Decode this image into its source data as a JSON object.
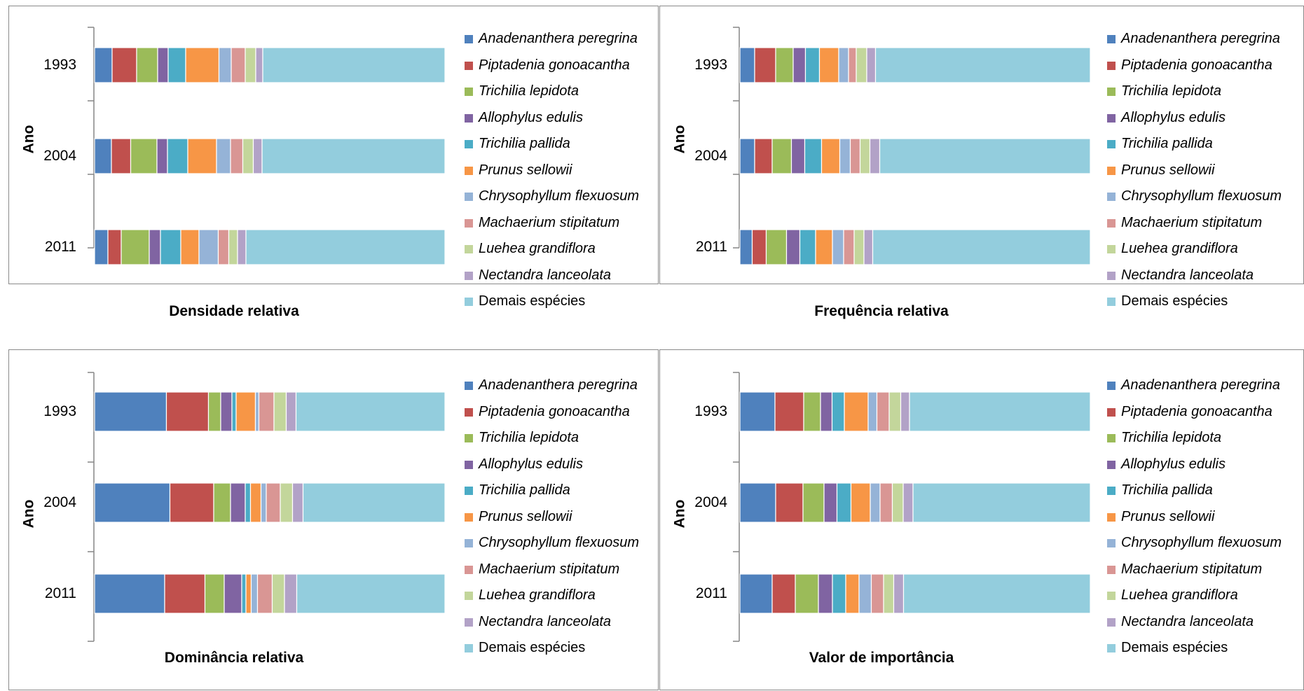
{
  "colors": [
    "#4f81bd",
    "#c0504d",
    "#9bbb59",
    "#8064a2",
    "#4bacc6",
    "#f79646",
    "#95b3d7",
    "#d99694",
    "#c3d69b",
    "#b2a2c7",
    "#93cddd"
  ],
  "legend_species": [
    "Anadenanthera peregrina",
    "Piptadenia gonoacantha",
    "Trichilia lepidota",
    "Allophylus edulis",
    "Trichilia pallida",
    "Prunus sellowii",
    "Chrysophyllum flexuosum",
    "Machaerium stipitatum",
    "Luehea grandiflora",
    "Nectandra lanceolata",
    "Demais espécies"
  ],
  "chart_data": [
    {
      "type": "bar",
      "stacked": true,
      "orientation": "horizontal",
      "title": "Densidade relativa",
      "ylabel": "Ano",
      "categories": [
        "1993",
        "2004",
        "2011"
      ],
      "xlim": [
        0,
        100
      ],
      "series": [
        {
          "name": "Anadenanthera peregrina",
          "values": [
            5.0,
            4.8,
            3.8
          ]
        },
        {
          "name": "Piptadenia gonoacantha",
          "values": [
            7.0,
            5.5,
            3.8
          ]
        },
        {
          "name": "Trichilia lepidota",
          "values": [
            6.0,
            7.5,
            8.0
          ]
        },
        {
          "name": "Allophylus edulis",
          "values": [
            3.0,
            3.0,
            3.2
          ]
        },
        {
          "name": "Trichilia pallida",
          "values": [
            5.0,
            5.8,
            5.8
          ]
        },
        {
          "name": "Prunus sellowii",
          "values": [
            9.5,
            8.2,
            5.2
          ]
        },
        {
          "name": "Chrysophyllum flexuosum",
          "values": [
            3.5,
            4.0,
            5.5
          ]
        },
        {
          "name": "Machaerium stipitatum",
          "values": [
            4.0,
            3.5,
            3.0
          ]
        },
        {
          "name": "Luehea grandiflora",
          "values": [
            3.0,
            3.0,
            2.5
          ]
        },
        {
          "name": "Nectandra lanceolata",
          "values": [
            2.0,
            2.5,
            2.4
          ]
        },
        {
          "name": "Demais espécies",
          "values": [
            52.0,
            52.2,
            56.8
          ]
        }
      ]
    },
    {
      "type": "bar",
      "stacked": true,
      "orientation": "horizontal",
      "title": "Frequência relativa",
      "ylabel": "Ano",
      "categories": [
        "1993",
        "2004",
        "2011"
      ],
      "xlim": [
        0,
        100
      ],
      "series": [
        {
          "name": "Anadenanthera peregrina",
          "values": [
            4.2,
            4.2,
            3.5
          ]
        },
        {
          "name": "Piptadenia gonoacantha",
          "values": [
            6.0,
            5.0,
            4.0
          ]
        },
        {
          "name": "Trichilia lepidota",
          "values": [
            5.0,
            5.5,
            5.8
          ]
        },
        {
          "name": "Allophylus edulis",
          "values": [
            3.5,
            3.8,
            3.8
          ]
        },
        {
          "name": "Trichilia pallida",
          "values": [
            4.0,
            4.8,
            4.5
          ]
        },
        {
          "name": "Prunus sellowii",
          "values": [
            5.5,
            5.2,
            4.8
          ]
        },
        {
          "name": "Chrysophyllum flexuosum",
          "values": [
            2.8,
            3.0,
            3.2
          ]
        },
        {
          "name": "Machaerium stipitatum",
          "values": [
            2.2,
            2.8,
            3.0
          ]
        },
        {
          "name": "Luehea grandiflora",
          "values": [
            3.0,
            2.8,
            2.8
          ]
        },
        {
          "name": "Nectandra lanceolata",
          "values": [
            2.5,
            2.8,
            2.5
          ]
        },
        {
          "name": "Demais espécies",
          "values": [
            61.3,
            60.1,
            62.1
          ]
        }
      ]
    },
    {
      "type": "bar",
      "stacked": true,
      "orientation": "horizontal",
      "title": "Dominância relativa",
      "ylabel": "Ano",
      "categories": [
        "1993",
        "2004",
        "2011"
      ],
      "xlim": [
        0,
        100
      ],
      "series": [
        {
          "name": "Anadenanthera peregrina",
          "values": [
            20.5,
            21.5,
            20.0
          ]
        },
        {
          "name": "Piptadenia gonoacantha",
          "values": [
            12.0,
            12.5,
            11.5
          ]
        },
        {
          "name": "Trichilia lepidota",
          "values": [
            3.5,
            4.8,
            5.5
          ]
        },
        {
          "name": "Allophylus edulis",
          "values": [
            3.2,
            4.2,
            5.0
          ]
        },
        {
          "name": "Trichilia pallida",
          "values": [
            1.2,
            1.5,
            1.2
          ]
        },
        {
          "name": "Prunus sellowii",
          "values": [
            5.5,
            3.0,
            1.5
          ]
        },
        {
          "name": "Chrysophyllum flexuosum",
          "values": [
            1.0,
            1.5,
            1.8
          ]
        },
        {
          "name": "Machaerium stipitatum",
          "values": [
            4.3,
            4.0,
            4.2
          ]
        },
        {
          "name": "Luehea grandiflora",
          "values": [
            3.5,
            3.5,
            3.5
          ]
        },
        {
          "name": "Nectandra lanceolata",
          "values": [
            2.8,
            3.0,
            3.5
          ]
        },
        {
          "name": "Demais espécies",
          "values": [
            42.5,
            40.5,
            42.3
          ]
        }
      ]
    },
    {
      "type": "bar",
      "stacked": true,
      "orientation": "horizontal",
      "title": "Valor de importância",
      "ylabel": "Ano",
      "categories": [
        "1993",
        "2004",
        "2011"
      ],
      "xlim": [
        0,
        100
      ],
      "series": [
        {
          "name": "Anadenanthera peregrina",
          "values": [
            10.0,
            10.2,
            9.2
          ]
        },
        {
          "name": "Piptadenia gonoacantha",
          "values": [
            8.2,
            7.8,
            6.6
          ]
        },
        {
          "name": "Trichilia lepidota",
          "values": [
            4.8,
            6.0,
            6.6
          ]
        },
        {
          "name": "Allophylus edulis",
          "values": [
            3.3,
            3.7,
            4.0
          ]
        },
        {
          "name": "Trichilia pallida",
          "values": [
            3.5,
            4.0,
            3.8
          ]
        },
        {
          "name": "Prunus sellowii",
          "values": [
            6.8,
            5.5,
            3.8
          ]
        },
        {
          "name": "Chrysophyllum flexuosum",
          "values": [
            2.5,
            2.8,
            3.5
          ]
        },
        {
          "name": "Machaerium stipitatum",
          "values": [
            3.5,
            3.5,
            3.5
          ]
        },
        {
          "name": "Luehea grandiflora",
          "values": [
            3.3,
            3.1,
            2.9
          ]
        },
        {
          "name": "Nectandra lanceolata",
          "values": [
            2.5,
            2.8,
            2.8
          ]
        },
        {
          "name": "Demais espécies",
          "values": [
            51.6,
            50.6,
            53.3
          ]
        }
      ]
    }
  ]
}
